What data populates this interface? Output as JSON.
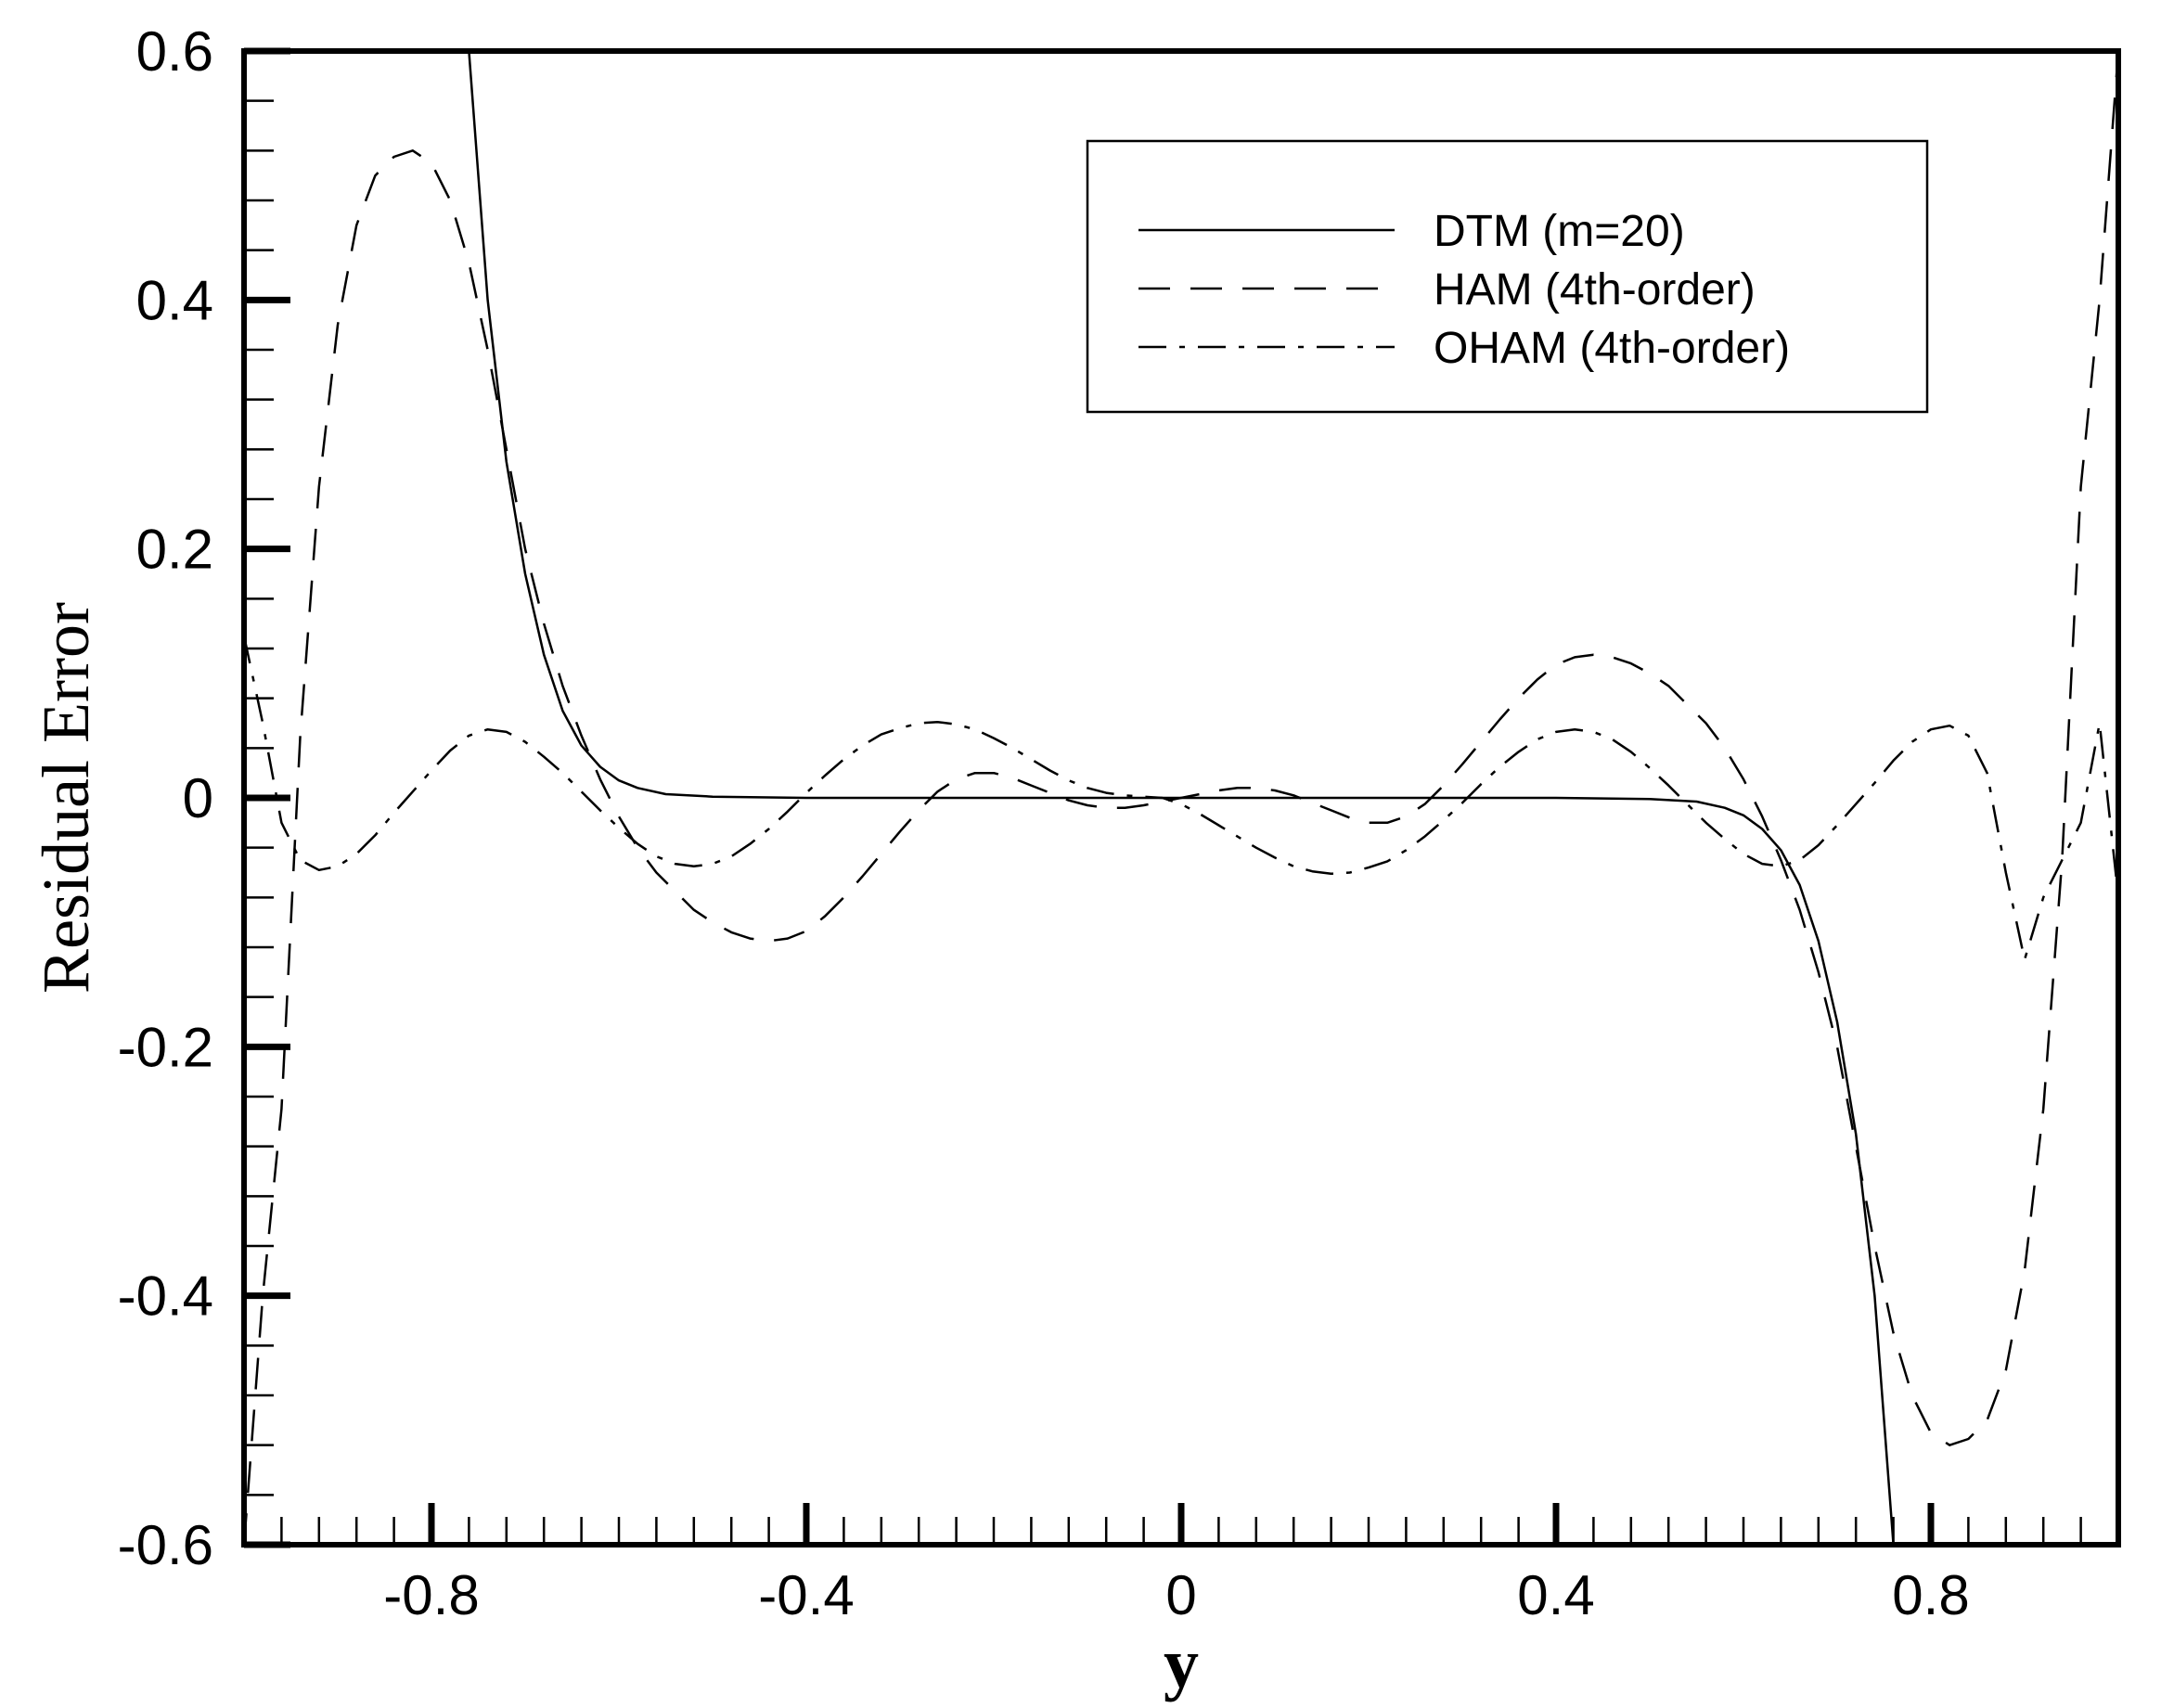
{
  "chart_data": {
    "type": "line",
    "title": "",
    "xlabel": "y",
    "ylabel": "Residual Error",
    "xlim": [
      -1,
      1
    ],
    "ylim": [
      -0.6,
      0.6
    ],
    "x_ticks": [
      -0.8,
      -0.4,
      0,
      0.4,
      0.8
    ],
    "x_tick_labels": [
      "-0.8",
      "-0.4",
      "0",
      "0.4",
      "0.8"
    ],
    "y_ticks": [
      -0.6,
      -0.4,
      -0.2,
      0,
      0.2,
      0.4,
      0.6
    ],
    "y_tick_labels": [
      "-0.6",
      "-0.4",
      "-0.2",
      "0",
      "0.2",
      "0.4",
      "0.6"
    ],
    "grid": false,
    "legend_position": "top-right",
    "series": [
      {
        "name": "DTM (m=20)",
        "style": "solid",
        "x": [
          -0.76,
          -0.74,
          -0.72,
          -0.7,
          -0.68,
          -0.66,
          -0.64,
          -0.62,
          -0.6,
          -0.58,
          -0.55,
          -0.5,
          -0.4,
          -0.2,
          0,
          0.2,
          0.4,
          0.5,
          0.55,
          0.58,
          0.6,
          0.62,
          0.64,
          0.66,
          0.68,
          0.7,
          0.72,
          0.74,
          0.76
        ],
        "y": [
          0.6,
          0.4,
          0.27,
          0.18,
          0.115,
          0.07,
          0.042,
          0.025,
          0.014,
          0.008,
          0.003,
          0.001,
          0,
          0,
          0,
          0,
          0,
          -0.001,
          -0.003,
          -0.008,
          -0.014,
          -0.025,
          -0.042,
          -0.07,
          -0.115,
          -0.18,
          -0.27,
          -0.4,
          -0.6
        ]
      },
      {
        "name": "HAM (4th-order)",
        "style": "dashed",
        "x": [
          -1,
          -0.98,
          -0.96,
          -0.95,
          -0.94,
          -0.93,
          -0.92,
          -0.9,
          -0.88,
          -0.86,
          -0.84,
          -0.82,
          -0.8,
          -0.78,
          -0.76,
          -0.74,
          -0.72,
          -0.7,
          -0.68,
          -0.66,
          -0.64,
          -0.62,
          -0.6,
          -0.58,
          -0.56,
          -0.54,
          -0.52,
          -0.5,
          -0.48,
          -0.46,
          -0.44,
          -0.42,
          -0.4,
          -0.38,
          -0.36,
          -0.34,
          -0.32,
          -0.3,
          -0.28,
          -0.26,
          -0.24,
          -0.22,
          -0.2,
          -0.18,
          -0.16,
          -0.14,
          -0.12,
          -0.1,
          -0.08,
          -0.06,
          -0.04,
          -0.02,
          0,
          0.02,
          0.04,
          0.06,
          0.08,
          0.1,
          0.12,
          0.14,
          0.16,
          0.18,
          0.2,
          0.22,
          0.24,
          0.26,
          0.28,
          0.3,
          0.32,
          0.34,
          0.36,
          0.38,
          0.4,
          0.42,
          0.44,
          0.46,
          0.48,
          0.5,
          0.52,
          0.54,
          0.56,
          0.58,
          0.6,
          0.62,
          0.64,
          0.66,
          0.68,
          0.7,
          0.72,
          0.74,
          0.76,
          0.78,
          0.8,
          0.82,
          0.84,
          0.86,
          0.88,
          0.9,
          0.92,
          0.93,
          0.94,
          0.95,
          0.96,
          0.98,
          1
        ],
        "y": [
          -0.6,
          -0.4,
          -0.25,
          -0.1,
          0.05,
          0.15,
          0.25,
          0.38,
          0.46,
          0.5,
          0.515,
          0.52,
          0.51,
          0.48,
          0.43,
          0.36,
          0.28,
          0.2,
          0.14,
          0.09,
          0.05,
          0.015,
          -0.015,
          -0.04,
          -0.06,
          -0.075,
          -0.09,
          -0.1,
          -0.108,
          -0.113,
          -0.115,
          -0.113,
          -0.107,
          -0.095,
          -0.08,
          -0.063,
          -0.045,
          -0.027,
          -0.01,
          0.005,
          0.015,
          0.02,
          0.02,
          0.016,
          0.01,
          0.004,
          -0.002,
          -0.006,
          -0.008,
          -0.008,
          -0.006,
          -0.003,
          0,
          0.003,
          0.006,
          0.008,
          0.008,
          0.006,
          0.002,
          -0.004,
          -0.01,
          -0.016,
          -0.02,
          -0.02,
          -0.015,
          -0.005,
          0.01,
          0.027,
          0.045,
          0.063,
          0.08,
          0.095,
          0.107,
          0.113,
          0.115,
          0.113,
          0.108,
          0.1,
          0.09,
          0.075,
          0.06,
          0.04,
          0.015,
          -0.015,
          -0.05,
          -0.09,
          -0.14,
          -0.2,
          -0.28,
          -0.36,
          -0.43,
          -0.48,
          -0.51,
          -0.52,
          -0.515,
          -0.5,
          -0.46,
          -0.38,
          -0.25,
          -0.15,
          -0.05,
          0.1,
          0.25,
          0.4,
          0.6
        ]
      },
      {
        "name": "OHAM (4th-order)",
        "style": "dash-dot",
        "x": [
          -1,
          -0.98,
          -0.96,
          -0.94,
          -0.92,
          -0.9,
          -0.88,
          -0.86,
          -0.84,
          -0.82,
          -0.8,
          -0.78,
          -0.76,
          -0.74,
          -0.72,
          -0.7,
          -0.68,
          -0.66,
          -0.64,
          -0.62,
          -0.6,
          -0.58,
          -0.56,
          -0.54,
          -0.52,
          -0.5,
          -0.48,
          -0.46,
          -0.44,
          -0.42,
          -0.4,
          -0.38,
          -0.36,
          -0.34,
          -0.32,
          -0.3,
          -0.28,
          -0.26,
          -0.24,
          -0.22,
          -0.2,
          -0.18,
          -0.16,
          -0.14,
          -0.12,
          -0.1,
          -0.08,
          -0.06,
          -0.04,
          -0.02,
          0,
          0.02,
          0.04,
          0.06,
          0.08,
          0.1,
          0.12,
          0.14,
          0.16,
          0.18,
          0.2,
          0.22,
          0.24,
          0.26,
          0.28,
          0.3,
          0.32,
          0.34,
          0.36,
          0.38,
          0.4,
          0.42,
          0.44,
          0.46,
          0.48,
          0.5,
          0.52,
          0.54,
          0.56,
          0.58,
          0.6,
          0.62,
          0.64,
          0.66,
          0.68,
          0.7,
          0.72,
          0.74,
          0.76,
          0.78,
          0.8,
          0.82,
          0.84,
          0.86,
          0.88,
          0.9,
          0.92,
          0.94,
          0.96,
          0.98,
          1
        ],
        "y": [
          0.13,
          0.06,
          -0.02,
          -0.05,
          -0.058,
          -0.055,
          -0.045,
          -0.03,
          -0.012,
          0.005,
          0.022,
          0.038,
          0.05,
          0.055,
          0.053,
          0.045,
          0.033,
          0.02,
          0.005,
          -0.01,
          -0.024,
          -0.037,
          -0.047,
          -0.053,
          -0.055,
          -0.053,
          -0.047,
          -0.037,
          -0.025,
          -0.011,
          0.004,
          0.018,
          0.031,
          0.042,
          0.051,
          0.056,
          0.06,
          0.061,
          0.059,
          0.055,
          0.048,
          0.04,
          0.031,
          0.022,
          0.014,
          0.008,
          0.004,
          0.002,
          0.001,
          0,
          -0.005,
          -0.013,
          -0.022,
          -0.031,
          -0.04,
          -0.048,
          -0.055,
          -0.059,
          -0.061,
          -0.06,
          -0.056,
          -0.051,
          -0.042,
          -0.031,
          -0.018,
          -0.004,
          0.011,
          0.025,
          0.037,
          0.047,
          0.053,
          0.055,
          0.053,
          0.047,
          0.037,
          0.024,
          0.01,
          -0.005,
          -0.02,
          -0.033,
          -0.045,
          -0.053,
          -0.055,
          -0.05,
          -0.038,
          -0.022,
          -0.005,
          0.012,
          0.03,
          0.045,
          0.055,
          0.058,
          0.05,
          0.02,
          -0.06,
          -0.13,
          -0.08,
          -0.05,
          -0.02,
          0.06,
          -0.08
        ]
      }
    ]
  }
}
